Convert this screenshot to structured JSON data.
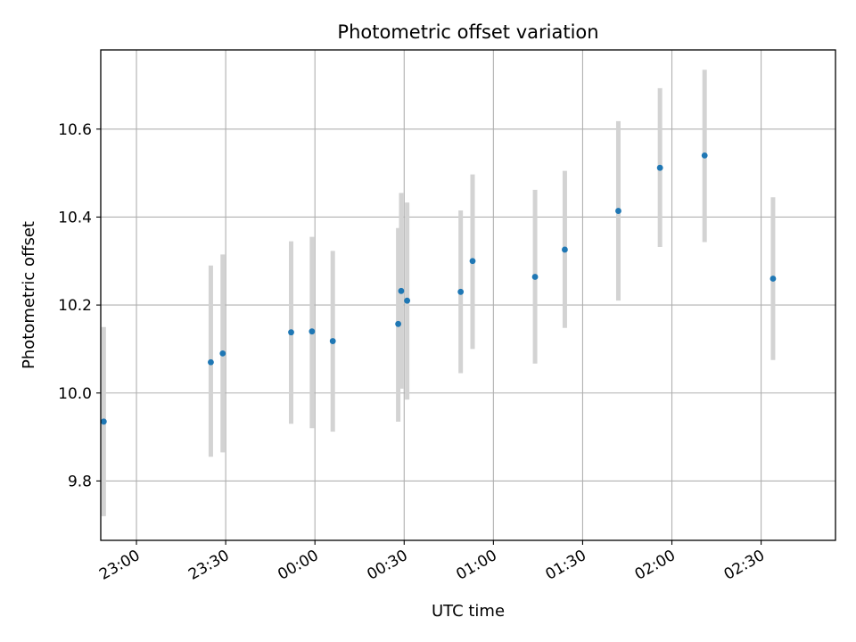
{
  "chart_data": {
    "type": "scatter",
    "title": "Photometric offset variation",
    "xlabel": "UTC time",
    "ylabel": "Photometric offset",
    "x_axis": {
      "kind": "time",
      "xlim": [
        "22:48",
        "02:55"
      ],
      "ticks": [
        "23:00",
        "23:30",
        "00:00",
        "00:30",
        "01:00",
        "01:30",
        "02:00",
        "02:30"
      ]
    },
    "ylim": [
      9.665,
      10.78
    ],
    "yticks": [
      "9.8",
      "10.0",
      "10.2",
      "10.4",
      "10.6"
    ],
    "grid": true,
    "legend": "none",
    "colors": {
      "point": "#1f77b4",
      "errorbar": "#d3d3d3",
      "grid": "#b0b0b0"
    },
    "series": [
      {
        "points": [
          {
            "x": "22:49",
            "y": 9.935,
            "low": 9.72,
            "high": 10.15
          },
          {
            "x": "23:25",
            "y": 10.07,
            "low": 9.855,
            "high": 10.29
          },
          {
            "x": "23:29",
            "y": 10.09,
            "low": 9.865,
            "high": 10.315
          },
          {
            "x": "23:52",
            "y": 10.138,
            "low": 9.93,
            "high": 10.345
          },
          {
            "x": "23:59",
            "y": 10.14,
            "low": 9.92,
            "high": 10.355
          },
          {
            "x": "00:06",
            "y": 10.118,
            "low": 9.912,
            "high": 10.323
          },
          {
            "x": "00:28",
            "y": 10.157,
            "low": 9.935,
            "high": 10.375
          },
          {
            "x": "00:29",
            "y": 10.232,
            "low": 10.01,
            "high": 10.455
          },
          {
            "x": "00:31",
            "y": 10.21,
            "low": 9.985,
            "high": 10.433
          },
          {
            "x": "00:49",
            "y": 10.23,
            "low": 10.045,
            "high": 10.415
          },
          {
            "x": "00:53",
            "y": 10.3,
            "low": 10.1,
            "high": 10.497
          },
          {
            "x": "01:14",
            "y": 10.264,
            "low": 10.067,
            "high": 10.462
          },
          {
            "x": "01:24",
            "y": 10.326,
            "low": 10.148,
            "high": 10.505
          },
          {
            "x": "01:42",
            "y": 10.414,
            "low": 10.21,
            "high": 10.618
          },
          {
            "x": "01:56",
            "y": 10.512,
            "low": 10.332,
            "high": 10.693
          },
          {
            "x": "02:11",
            "y": 10.54,
            "low": 10.343,
            "high": 10.735
          },
          {
            "x": "02:34",
            "y": 10.26,
            "low": 10.075,
            "high": 10.445
          }
        ]
      }
    ]
  }
}
